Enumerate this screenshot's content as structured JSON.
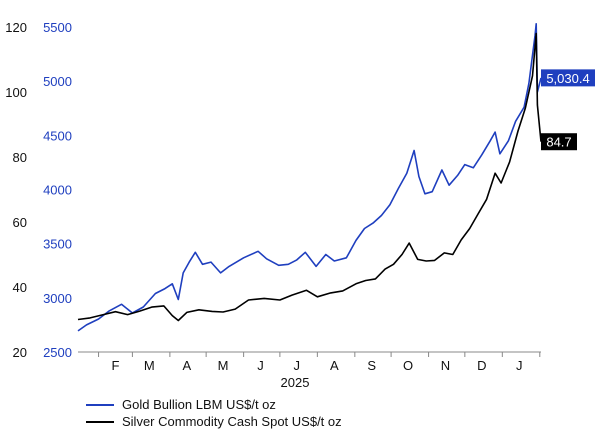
{
  "chart_data": {
    "type": "line",
    "title": "",
    "xlabel": "2025",
    "x_ticks": [
      "F",
      "M",
      "A",
      "M",
      "J",
      "J",
      "A",
      "S",
      "O",
      "N",
      "D",
      "J"
    ],
    "x_range": [
      "2025-01-15",
      "2026-02-02"
    ],
    "axes": {
      "gold": {
        "side": "left-inner",
        "ylim": [
          2500,
          5500
        ],
        "ticks": [
          "2500",
          "3000",
          "3500",
          "4000",
          "4500",
          "5000",
          "5500"
        ],
        "color": "#1f3fbf"
      },
      "silver": {
        "side": "left-outer",
        "ylim": [
          20,
          120
        ],
        "ticks": [
          "20",
          "40",
          "60",
          "80",
          "100",
          "120"
        ],
        "color": "#000000"
      }
    },
    "series": [
      {
        "name": "Gold Bullion LBM US$/t oz",
        "axis": "gold",
        "color": "#1f3fbf",
        "last_value_label": "5,030.4",
        "points": [
          [
            "2025-01-15",
            2695
          ],
          [
            "2025-01-22",
            2750
          ],
          [
            "2025-02-01",
            2805
          ],
          [
            "2025-02-10",
            2880
          ],
          [
            "2025-02-20",
            2940
          ],
          [
            "2025-03-01",
            2860
          ],
          [
            "2025-03-10",
            2915
          ],
          [
            "2025-03-20",
            3040
          ],
          [
            "2025-03-28",
            3085
          ],
          [
            "2025-04-03",
            3130
          ],
          [
            "2025-04-08",
            2985
          ],
          [
            "2025-04-12",
            3230
          ],
          [
            "2025-04-17",
            3330
          ],
          [
            "2025-04-22",
            3420
          ],
          [
            "2025-04-28",
            3310
          ],
          [
            "2025-05-05",
            3330
          ],
          [
            "2025-05-13",
            3230
          ],
          [
            "2025-05-20",
            3290
          ],
          [
            "2025-06-01",
            3370
          ],
          [
            "2025-06-13",
            3430
          ],
          [
            "2025-06-20",
            3360
          ],
          [
            "2025-06-30",
            3300
          ],
          [
            "2025-07-08",
            3310
          ],
          [
            "2025-07-15",
            3350
          ],
          [
            "2025-07-22",
            3420
          ],
          [
            "2025-07-31",
            3290
          ],
          [
            "2025-08-08",
            3400
          ],
          [
            "2025-08-15",
            3340
          ],
          [
            "2025-08-25",
            3370
          ],
          [
            "2025-09-02",
            3530
          ],
          [
            "2025-09-09",
            3640
          ],
          [
            "2025-09-16",
            3690
          ],
          [
            "2025-09-23",
            3760
          ],
          [
            "2025-09-30",
            3860
          ],
          [
            "2025-10-07",
            4010
          ],
          [
            "2025-10-14",
            4150
          ],
          [
            "2025-10-20",
            4360
          ],
          [
            "2025-10-24",
            4120
          ],
          [
            "2025-10-29",
            3960
          ],
          [
            "2025-11-04",
            3980
          ],
          [
            "2025-11-12",
            4180
          ],
          [
            "2025-11-18",
            4040
          ],
          [
            "2025-11-25",
            4130
          ],
          [
            "2025-12-01",
            4230
          ],
          [
            "2025-12-08",
            4200
          ],
          [
            "2025-12-15",
            4320
          ],
          [
            "2025-12-22",
            4450
          ],
          [
            "2025-12-26",
            4530
          ],
          [
            "2025-12-30",
            4330
          ],
          [
            "2026-01-06",
            4450
          ],
          [
            "2026-01-12",
            4630
          ],
          [
            "2026-01-19",
            4760
          ],
          [
            "2026-01-23",
            4980
          ],
          [
            "2026-01-28",
            5420
          ],
          [
            "2026-01-29",
            5530
          ],
          [
            "2026-01-30",
            4900
          ],
          [
            "2026-02-02",
            5030.4
          ]
        ]
      },
      {
        "name": "Silver Commodity Cash Spot US$/t oz",
        "axis": "silver",
        "color": "#000000",
        "last_value_label": "84.7",
        "points": [
          [
            "2025-01-15",
            30.0
          ],
          [
            "2025-01-25",
            30.5
          ],
          [
            "2025-02-05",
            31.5
          ],
          [
            "2025-02-15",
            32.4
          ],
          [
            "2025-02-25",
            31.5
          ],
          [
            "2025-03-07",
            32.6
          ],
          [
            "2025-03-17",
            33.8
          ],
          [
            "2025-03-27",
            34.2
          ],
          [
            "2025-04-03",
            31.2
          ],
          [
            "2025-04-08",
            29.7
          ],
          [
            "2025-04-15",
            32.2
          ],
          [
            "2025-04-25",
            33.0
          ],
          [
            "2025-05-06",
            32.5
          ],
          [
            "2025-05-15",
            32.3
          ],
          [
            "2025-05-25",
            33.2
          ],
          [
            "2025-06-05",
            36.0
          ],
          [
            "2025-06-18",
            36.5
          ],
          [
            "2025-07-01",
            36.0
          ],
          [
            "2025-07-11",
            37.5
          ],
          [
            "2025-07-23",
            39.0
          ],
          [
            "2025-08-01",
            37.0
          ],
          [
            "2025-08-12",
            38.2
          ],
          [
            "2025-08-22",
            38.8
          ],
          [
            "2025-09-02",
            41.0
          ],
          [
            "2025-09-10",
            42.0
          ],
          [
            "2025-09-18",
            42.5
          ],
          [
            "2025-09-26",
            45.5
          ],
          [
            "2025-10-03",
            47.0
          ],
          [
            "2025-10-10",
            50.0
          ],
          [
            "2025-10-16",
            53.5
          ],
          [
            "2025-10-23",
            48.5
          ],
          [
            "2025-10-30",
            48.0
          ],
          [
            "2025-11-06",
            48.2
          ],
          [
            "2025-11-14",
            50.5
          ],
          [
            "2025-11-21",
            50.0
          ],
          [
            "2025-11-28",
            54.5
          ],
          [
            "2025-12-05",
            58.0
          ],
          [
            "2025-12-12",
            62.5
          ],
          [
            "2025-12-19",
            67.0
          ],
          [
            "2025-12-26",
            75.0
          ],
          [
            "2025-12-31",
            72.0
          ],
          [
            "2026-01-07",
            78.5
          ],
          [
            "2026-01-14",
            88.0
          ],
          [
            "2026-01-20",
            95.0
          ],
          [
            "2026-01-26",
            105.0
          ],
          [
            "2026-01-29",
            118.0
          ],
          [
            "2026-01-30",
            96.0
          ],
          [
            "2026-02-02",
            84.7
          ]
        ]
      }
    ],
    "grid": false,
    "legend_position": "bottom-left"
  }
}
